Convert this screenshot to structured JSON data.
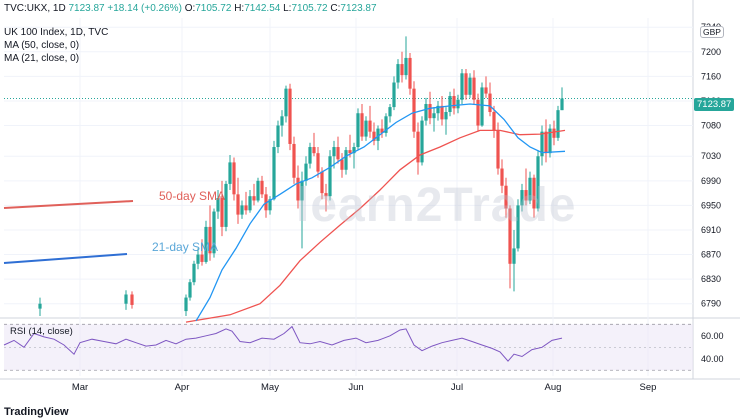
{
  "header": {
    "symbol": "TVC:UKX, 1D",
    "last": "7123.87",
    "change": "+18.14 (+0.26%)",
    "open_label": "O:",
    "open": "7105.72",
    "high_label": "H:",
    "high": "7142.54",
    "low_label": "L:",
    "low": "7105.72",
    "close_label": "C:",
    "close": "7123.87"
  },
  "legend": {
    "title": "UK 100 Index, 1D, TVC",
    "ma50": "MA (50, close, 0)",
    "ma21": "MA (21, close, 0)",
    "rsi": "RSI (14, close)"
  },
  "currency": "GBP",
  "price_tag": "7123.87",
  "annotations": {
    "ma50": "50-day SMA",
    "ma21": "21-day SMA"
  },
  "watermark": "learn2Trade",
  "branding": "TradingView",
  "colors": {
    "up": "#26a69a",
    "down": "#ef5350",
    "ma50": "#ef5350",
    "ma21": "#2196f3",
    "rsi_line": "#7e57c2",
    "rsi_band": "#ede7f6"
  },
  "chart_data": [
    {
      "type": "candlestick",
      "title": "UK 100 Index, 1D, TVC",
      "x_ticks": [
        "Mar",
        "Apr",
        "May",
        "Jun",
        "Jul",
        "Aug",
        "Sep"
      ],
      "y_ticks": [
        6790,
        6830,
        6870,
        6910,
        6950,
        6990,
        7030,
        7080,
        7120,
        7160,
        7200,
        7240
      ],
      "ylim": [
        6770,
        7255
      ],
      "candles": [
        {
          "x": 40,
          "o": 6782,
          "h": 6800,
          "l": 6770,
          "c": 6790
        },
        {
          "x": 126,
          "o": 6790,
          "h": 6812,
          "l": 6780,
          "c": 6805
        },
        {
          "x": 132,
          "o": 6805,
          "h": 6810,
          "l": 6782,
          "c": 6788
        },
        {
          "x": 186,
          "o": 6778,
          "h": 6805,
          "l": 6770,
          "c": 6800
        },
        {
          "x": 190,
          "o": 6800,
          "h": 6830,
          "l": 6795,
          "c": 6825
        },
        {
          "x": 194,
          "o": 6825,
          "h": 6860,
          "l": 6820,
          "c": 6855
        },
        {
          "x": 198,
          "o": 6855,
          "h": 6880,
          "l": 6846,
          "c": 6870
        },
        {
          "x": 202,
          "o": 6870,
          "h": 6895,
          "l": 6852,
          "c": 6858
        },
        {
          "x": 206,
          "o": 6858,
          "h": 6925,
          "l": 6855,
          "c": 6915
        },
        {
          "x": 210,
          "o": 6915,
          "h": 6950,
          "l": 6860,
          "c": 6872
        },
        {
          "x": 214,
          "o": 6872,
          "h": 6945,
          "l": 6865,
          "c": 6940
        },
        {
          "x": 218,
          "o": 6940,
          "h": 6975,
          "l": 6928,
          "c": 6962
        },
        {
          "x": 222,
          "o": 6962,
          "h": 6990,
          "l": 6900,
          "c": 6915
        },
        {
          "x": 226,
          "o": 6915,
          "h": 6990,
          "l": 6908,
          "c": 6985
        },
        {
          "x": 230,
          "o": 6985,
          "h": 7032,
          "l": 6975,
          "c": 7020
        },
        {
          "x": 234,
          "o": 7020,
          "h": 7028,
          "l": 6958,
          "c": 6968
        },
        {
          "x": 238,
          "o": 6968,
          "h": 6995,
          "l": 6920,
          "c": 6935
        },
        {
          "x": 242,
          "o": 6935,
          "h": 6958,
          "l": 6928,
          "c": 6950
        },
        {
          "x": 246,
          "o": 6950,
          "h": 6972,
          "l": 6935,
          "c": 6942
        },
        {
          "x": 250,
          "o": 6942,
          "h": 6975,
          "l": 6938,
          "c": 6965
        },
        {
          "x": 254,
          "o": 6965,
          "h": 6985,
          "l": 6950,
          "c": 6958
        },
        {
          "x": 258,
          "o": 6958,
          "h": 6995,
          "l": 6955,
          "c": 6990
        },
        {
          "x": 262,
          "o": 6990,
          "h": 6998,
          "l": 6962,
          "c": 6968
        },
        {
          "x": 266,
          "o": 6968,
          "h": 6980,
          "l": 6930,
          "c": 6942
        },
        {
          "x": 270,
          "o": 6942,
          "h": 6965,
          "l": 6935,
          "c": 6960
        },
        {
          "x": 274,
          "o": 6960,
          "h": 7055,
          "l": 6958,
          "c": 7045
        },
        {
          "x": 278,
          "o": 7045,
          "h": 7088,
          "l": 7035,
          "c": 7080
        },
        {
          "x": 282,
          "o": 7080,
          "h": 7105,
          "l": 7062,
          "c": 7095
        },
        {
          "x": 286,
          "o": 7095,
          "h": 7145,
          "l": 7085,
          "c": 7140
        },
        {
          "x": 290,
          "o": 7140,
          "h": 7148,
          "l": 7040,
          "c": 7050
        },
        {
          "x": 294,
          "o": 7050,
          "h": 7062,
          "l": 6985,
          "c": 6995
        },
        {
          "x": 298,
          "o": 6995,
          "h": 7015,
          "l": 6945,
          "c": 6958
        },
        {
          "x": 302,
          "o": 6958,
          "h": 7005,
          "l": 6880,
          "c": 6990
        },
        {
          "x": 306,
          "o": 6990,
          "h": 7030,
          "l": 6982,
          "c": 7018
        },
        {
          "x": 310,
          "o": 7018,
          "h": 7052,
          "l": 7010,
          "c": 7045
        },
        {
          "x": 314,
          "o": 7045,
          "h": 7068,
          "l": 7030,
          "c": 7035
        },
        {
          "x": 318,
          "o": 7035,
          "h": 7045,
          "l": 6995,
          "c": 7005
        },
        {
          "x": 322,
          "o": 7005,
          "h": 7012,
          "l": 6960,
          "c": 6970
        },
        {
          "x": 326,
          "o": 6970,
          "h": 6985,
          "l": 6940,
          "c": 6965
        },
        {
          "x": 330,
          "o": 6965,
          "h": 7040,
          "l": 6958,
          "c": 7030
        },
        {
          "x": 334,
          "o": 7030,
          "h": 7055,
          "l": 7010,
          "c": 7045
        },
        {
          "x": 338,
          "o": 7045,
          "h": 7062,
          "l": 7018,
          "c": 7025
        },
        {
          "x": 342,
          "o": 7025,
          "h": 7035,
          "l": 6995,
          "c": 7008
        },
        {
          "x": 346,
          "o": 7008,
          "h": 7045,
          "l": 7000,
          "c": 7040
        },
        {
          "x": 350,
          "o": 7040,
          "h": 7065,
          "l": 7028,
          "c": 7035
        },
        {
          "x": 354,
          "o": 7035,
          "h": 7052,
          "l": 7010,
          "c": 7045
        },
        {
          "x": 358,
          "o": 7045,
          "h": 7108,
          "l": 7040,
          "c": 7100
        },
        {
          "x": 362,
          "o": 7100,
          "h": 7115,
          "l": 7055,
          "c": 7062
        },
        {
          "x": 366,
          "o": 7062,
          "h": 7095,
          "l": 7055,
          "c": 7088
        },
        {
          "x": 370,
          "o": 7088,
          "h": 7112,
          "l": 7060,
          "c": 7070
        },
        {
          "x": 374,
          "o": 7070,
          "h": 7085,
          "l": 7048,
          "c": 7055
        },
        {
          "x": 378,
          "o": 7055,
          "h": 7080,
          "l": 7040,
          "c": 7075
        },
        {
          "x": 382,
          "o": 7075,
          "h": 7090,
          "l": 7060,
          "c": 7068
        },
        {
          "x": 386,
          "o": 7068,
          "h": 7100,
          "l": 7062,
          "c": 7095
        },
        {
          "x": 390,
          "o": 7095,
          "h": 7115,
          "l": 7085,
          "c": 7110
        },
        {
          "x": 394,
          "o": 7110,
          "h": 7160,
          "l": 7105,
          "c": 7150
        },
        {
          "x": 398,
          "o": 7150,
          "h": 7188,
          "l": 7140,
          "c": 7180
        },
        {
          "x": 402,
          "o": 7180,
          "h": 7200,
          "l": 7150,
          "c": 7162
        },
        {
          "x": 406,
          "o": 7162,
          "h": 7225,
          "l": 7155,
          "c": 7190
        },
        {
          "x": 410,
          "o": 7190,
          "h": 7198,
          "l": 7130,
          "c": 7140
        },
        {
          "x": 414,
          "o": 7140,
          "h": 7152,
          "l": 7060,
          "c": 7070
        },
        {
          "x": 418,
          "o": 7070,
          "h": 7085,
          "l": 7000,
          "c": 7020
        },
        {
          "x": 422,
          "o": 7020,
          "h": 7095,
          "l": 7015,
          "c": 7088
        },
        {
          "x": 426,
          "o": 7088,
          "h": 7125,
          "l": 7080,
          "c": 7115
        },
        {
          "x": 430,
          "o": 7115,
          "h": 7135,
          "l": 7082,
          "c": 7092
        },
        {
          "x": 434,
          "o": 7092,
          "h": 7110,
          "l": 7070,
          "c": 7100
        },
        {
          "x": 438,
          "o": 7100,
          "h": 7120,
          "l": 7088,
          "c": 7112
        },
        {
          "x": 442,
          "o": 7112,
          "h": 7128,
          "l": 7080,
          "c": 7090
        },
        {
          "x": 446,
          "o": 7090,
          "h": 7110,
          "l": 7065,
          "c": 7102
        },
        {
          "x": 450,
          "o": 7102,
          "h": 7135,
          "l": 7095,
          "c": 7128
        },
        {
          "x": 454,
          "o": 7128,
          "h": 7140,
          "l": 7098,
          "c": 7108
        },
        {
          "x": 458,
          "o": 7108,
          "h": 7130,
          "l": 7100,
          "c": 7122
        },
        {
          "x": 462,
          "o": 7122,
          "h": 7172,
          "l": 7115,
          "c": 7165
        },
        {
          "x": 466,
          "o": 7165,
          "h": 7172,
          "l": 7122,
          "c": 7130
        },
        {
          "x": 470,
          "o": 7130,
          "h": 7165,
          "l": 7125,
          "c": 7158
        },
        {
          "x": 474,
          "o": 7158,
          "h": 7170,
          "l": 7115,
          "c": 7122
        },
        {
          "x": 478,
          "o": 7122,
          "h": 7132,
          "l": 7070,
          "c": 7080
        },
        {
          "x": 482,
          "o": 7080,
          "h": 7150,
          "l": 7078,
          "c": 7142
        },
        {
          "x": 486,
          "o": 7142,
          "h": 7160,
          "l": 7125,
          "c": 7132
        },
        {
          "x": 490,
          "o": 7132,
          "h": 7150,
          "l": 7095,
          "c": 7102
        },
        {
          "x": 494,
          "o": 7102,
          "h": 7112,
          "l": 7060,
          "c": 7072
        },
        {
          "x": 498,
          "o": 7072,
          "h": 7085,
          "l": 7000,
          "c": 7010
        },
        {
          "x": 502,
          "o": 7010,
          "h": 7025,
          "l": 6970,
          "c": 6982
        },
        {
          "x": 506,
          "o": 6982,
          "h": 6995,
          "l": 6930,
          "c": 6945
        },
        {
          "x": 510,
          "o": 6945,
          "h": 6950,
          "l": 6815,
          "c": 6855
        },
        {
          "x": 514,
          "o": 6855,
          "h": 6910,
          "l": 6810,
          "c": 6880
        },
        {
          "x": 518,
          "o": 6880,
          "h": 6960,
          "l": 6875,
          "c": 6950
        },
        {
          "x": 522,
          "o": 6950,
          "h": 6985,
          "l": 6940,
          "c": 6975
        },
        {
          "x": 526,
          "o": 6975,
          "h": 7010,
          "l": 6950,
          "c": 6958
        },
        {
          "x": 530,
          "o": 6958,
          "h": 7005,
          "l": 6952,
          "c": 6995
        },
        {
          "x": 534,
          "o": 6995,
          "h": 7000,
          "l": 6930,
          "c": 6945
        },
        {
          "x": 538,
          "o": 6945,
          "h": 7040,
          "l": 6940,
          "c": 7030
        },
        {
          "x": 542,
          "o": 7030,
          "h": 7080,
          "l": 7015,
          "c": 7070
        },
        {
          "x": 546,
          "o": 7070,
          "h": 7090,
          "l": 7020,
          "c": 7035
        },
        {
          "x": 550,
          "o": 7035,
          "h": 7082,
          "l": 7028,
          "c": 7075
        },
        {
          "x": 554,
          "o": 7075,
          "h": 7088,
          "l": 7048,
          "c": 7060
        },
        {
          "x": 558,
          "o": 7060,
          "h": 7112,
          "l": 7055,
          "c": 7105
        },
        {
          "x": 562,
          "o": 7105,
          "h": 7142,
          "l": 7105,
          "c": 7124
        }
      ],
      "series": [
        {
          "name": "MA (50, close, 0)",
          "points": [
            [
              186,
              6760
            ],
            [
              230,
              6772
            ],
            [
              260,
              6790
            ],
            [
              280,
              6820
            ],
            [
              300,
              6860
            ],
            [
              320,
              6890
            ],
            [
              340,
              6918
            ],
            [
              360,
              6945
            ],
            [
              380,
              6975
            ],
            [
              400,
              7008
            ],
            [
              420,
              7032
            ],
            [
              440,
              7045
            ],
            [
              460,
              7060
            ],
            [
              480,
              7072
            ],
            [
              500,
              7072
            ],
            [
              520,
              7065
            ],
            [
              540,
              7066
            ],
            [
              565,
              7072
            ]
          ]
        },
        {
          "name": "MA (21, close, 0)",
          "points": [
            [
              196,
              6762
            ],
            [
              210,
              6800
            ],
            [
              222,
              6845
            ],
            [
              236,
              6880
            ],
            [
              250,
              6920
            ],
            [
              264,
              6952
            ],
            [
              280,
              6968
            ],
            [
              296,
              6985
            ],
            [
              312,
              6995
            ],
            [
              330,
              7012
            ],
            [
              346,
              7030
            ],
            [
              364,
              7045
            ],
            [
              380,
              7065
            ],
            [
              396,
              7085
            ],
            [
              412,
              7100
            ],
            [
              430,
              7108
            ],
            [
              450,
              7112
            ],
            [
              470,
              7115
            ],
            [
              490,
              7112
            ],
            [
              504,
              7090
            ],
            [
              518,
              7060
            ],
            [
              530,
              7045
            ],
            [
              542,
              7036
            ],
            [
              565,
              7038
            ]
          ]
        }
      ]
    },
    {
      "type": "line",
      "title": "RSI (14, close)",
      "y_ticks": [
        40.0,
        60.0
      ],
      "ylim": [
        25,
        72
      ],
      "band": [
        30,
        70
      ],
      "points": [
        [
          4,
          52
        ],
        [
          14,
          56
        ],
        [
          24,
          50
        ],
        [
          34,
          62
        ],
        [
          44,
          59
        ],
        [
          54,
          57
        ],
        [
          64,
          52
        ],
        [
          74,
          44
        ],
        [
          80,
          54
        ],
        [
          92,
          57
        ],
        [
          104,
          55
        ],
        [
          116,
          53
        ],
        [
          126,
          57
        ],
        [
          136,
          54
        ],
        [
          146,
          51
        ],
        [
          156,
          52
        ],
        [
          166,
          56
        ],
        [
          176,
          53
        ],
        [
          186,
          57
        ],
        [
          196,
          58
        ],
        [
          206,
          60
        ],
        [
          216,
          62
        ],
        [
          226,
          66
        ],
        [
          232,
          64
        ],
        [
          240,
          55
        ],
        [
          250,
          54
        ],
        [
          262,
          58
        ],
        [
          274,
          57
        ],
        [
          284,
          62
        ],
        [
          292,
          68
        ],
        [
          300,
          54
        ],
        [
          310,
          53
        ],
        [
          320,
          55
        ],
        [
          332,
          52
        ],
        [
          344,
          56
        ],
        [
          356,
          58
        ],
        [
          366,
          54
        ],
        [
          378,
          56
        ],
        [
          390,
          60
        ],
        [
          400,
          65
        ],
        [
          406,
          66
        ],
        [
          414,
          52
        ],
        [
          422,
          47
        ],
        [
          432,
          51
        ],
        [
          442,
          54
        ],
        [
          452,
          56
        ],
        [
          462,
          58
        ],
        [
          472,
          55
        ],
        [
          482,
          52
        ],
        [
          492,
          49
        ],
        [
          500,
          46
        ],
        [
          508,
          38
        ],
        [
          514,
          44
        ],
        [
          522,
          42
        ],
        [
          532,
          48
        ],
        [
          542,
          50
        ],
        [
          552,
          56
        ],
        [
          562,
          58
        ]
      ]
    }
  ]
}
